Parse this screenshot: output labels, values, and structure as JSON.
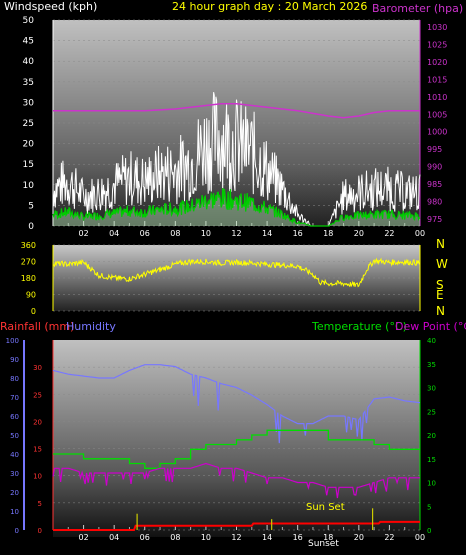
{
  "header": {
    "wind_label": "Windspeed (kph)",
    "title": "24 hour graph day : 20 March 2026",
    "baro_label": "Barometer (hpa)"
  },
  "colors": {
    "wind": "#ffffff",
    "gust_fill": "#b8e8b8",
    "avg_wind": "#00cc00",
    "baro": "#cc33cc",
    "direction": "#ffff00",
    "rain": "#ff0000",
    "humidity": "#7777ff",
    "temperature": "#00dd00",
    "dewpoint": "#cc00cc",
    "solar": "#cccc00"
  },
  "bottom_header": {
    "rain_label": "Rainfall (mm)",
    "humidity_label": "Humidity",
    "temp_label": "Temperature (°C)",
    "dew_label": "Dew Point (°C)"
  },
  "compass": [
    "N",
    "W",
    "S",
    "E",
    "N"
  ],
  "sun_set_label": "Sun Set",
  "sunset_tick": "Sunset",
  "chart_data": [
    {
      "type": "line",
      "title": "24 hour graph day : 20 March 2026",
      "x_ticks": [
        "02",
        "04",
        "06",
        "08",
        "10",
        "12",
        "14",
        "16",
        "18",
        "20",
        "22",
        "00"
      ],
      "y_left": {
        "label": "Windspeed (kph)",
        "ticks": [
          0,
          5,
          10,
          15,
          20,
          25,
          30,
          35,
          40,
          45,
          50
        ],
        "lim": [
          0,
          50
        ]
      },
      "y_right": {
        "label": "Barometer (hpa)",
        "ticks": [
          975,
          980,
          985,
          990,
          995,
          1000,
          1005,
          1010,
          1015,
          1020,
          1025,
          1030
        ],
        "lim": [
          973,
          1032
        ]
      },
      "series": [
        {
          "name": "Windspeed (kph)",
          "x": [
            0,
            1,
            2,
            3,
            4,
            5,
            6,
            7,
            8,
            9,
            10,
            11,
            12,
            13,
            14,
            15,
            16,
            17,
            18,
            19,
            20,
            21,
            22,
            23,
            24
          ],
          "values": [
            10,
            12,
            8,
            9,
            11,
            13,
            12,
            14,
            15,
            17,
            22,
            24,
            22,
            20,
            15,
            10,
            3,
            0,
            0,
            8,
            9,
            10,
            10,
            9,
            9
          ]
        },
        {
          "name": "Barometer (hpa)",
          "x": [
            0,
            2,
            4,
            6,
            8,
            10,
            11,
            12,
            13,
            14,
            16,
            18,
            19,
            20,
            21,
            22,
            23,
            24
          ],
          "values": [
            1006,
            1006,
            1006,
            1006,
            1006.5,
            1007.5,
            1008,
            1008,
            1007.5,
            1007,
            1006,
            1004.5,
            1004,
            1004.5,
            1005.5,
            1006,
            1006,
            1006
          ]
        }
      ]
    },
    {
      "type": "line",
      "y_left": {
        "ticks": [
          0,
          90,
          180,
          270,
          360
        ],
        "lim": [
          0,
          360
        ]
      },
      "series": [
        {
          "name": "Wind direction",
          "x": [
            0,
            1,
            2,
            3,
            4,
            5,
            6,
            7,
            8,
            9,
            10,
            11,
            12,
            13,
            14,
            15,
            16,
            17,
            17.5,
            18,
            19,
            20,
            20.5,
            21,
            22,
            23,
            24
          ],
          "values": [
            260,
            255,
            265,
            195,
            180,
            175,
            200,
            225,
            255,
            270,
            270,
            262,
            265,
            262,
            255,
            250,
            245,
            200,
            155,
            150,
            150,
            140,
            225,
            275,
            265,
            268,
            262
          ]
        }
      ]
    },
    {
      "type": "line",
      "y_rain": {
        "label": "Rainfall (mm)",
        "ticks": [
          0,
          5,
          10,
          15,
          20,
          25,
          30
        ],
        "lim": [
          0,
          35
        ]
      },
      "y_humidity": {
        "label": "Humidity",
        "ticks": [
          0,
          10,
          20,
          30,
          40,
          50,
          60,
          70,
          80,
          90,
          100
        ],
        "lim": [
          0,
          100
        ]
      },
      "y_temp": {
        "label": "Temperature (°C) / Dew Point (°C)",
        "ticks": [
          0,
          5,
          10,
          15,
          20,
          25,
          30,
          35,
          40
        ],
        "lim": [
          0,
          40
        ]
      },
      "series": [
        {
          "name": "Rainfall (mm)",
          "x": [
            0,
            5.3,
            5.4,
            13,
            13.1,
            21.3,
            21.4,
            24
          ],
          "values": [
            0,
            0,
            0.8,
            0.8,
            1.2,
            1.2,
            1.5,
            1.5
          ]
        },
        {
          "name": "Humidity",
          "x": [
            0,
            1,
            2,
            3,
            4,
            5,
            6,
            7,
            8,
            9,
            10,
            11,
            12,
            13,
            14,
            15,
            16,
            17,
            18,
            19,
            20,
            21,
            22,
            23,
            24
          ],
          "values": [
            84,
            82,
            81,
            80,
            80,
            84,
            87,
            87,
            86,
            82,
            80,
            77,
            75,
            71,
            66,
            60,
            56,
            56,
            60,
            60,
            58,
            69,
            70,
            68,
            67
          ]
        },
        {
          "name": "Temperature (°C)",
          "x": [
            0,
            1,
            2,
            3,
            4,
            5,
            6,
            7,
            8,
            9,
            10,
            11,
            12,
            13,
            14,
            15,
            16,
            17,
            18,
            19,
            20,
            21,
            22,
            23,
            24
          ],
          "values": [
            16,
            16,
            15,
            15,
            15,
            14,
            13,
            14,
            15,
            17,
            18,
            18,
            19,
            20,
            21,
            21,
            21,
            21,
            19,
            19,
            19,
            18,
            17,
            17,
            17
          ]
        },
        {
          "name": "Dew Point (°C)",
          "x": [
            0,
            1,
            2,
            3,
            4,
            5,
            6,
            7,
            8,
            9,
            10,
            11,
            12,
            13,
            14,
            15,
            16,
            17,
            18,
            19,
            20,
            21,
            22,
            23,
            24
          ],
          "values": [
            13,
            13,
            12,
            12,
            12,
            12,
            12,
            13,
            13,
            13,
            14,
            13,
            13,
            12,
            11,
            11,
            10,
            10,
            9,
            9,
            9,
            10,
            11,
            11,
            11
          ]
        },
        {
          "name": "Solar",
          "x": [
            5.4,
            5.5,
            14.2,
            14.3,
            20.8,
            20.9
          ],
          "values": [
            0,
            3,
            0,
            2,
            0,
            4
          ]
        }
      ]
    }
  ]
}
